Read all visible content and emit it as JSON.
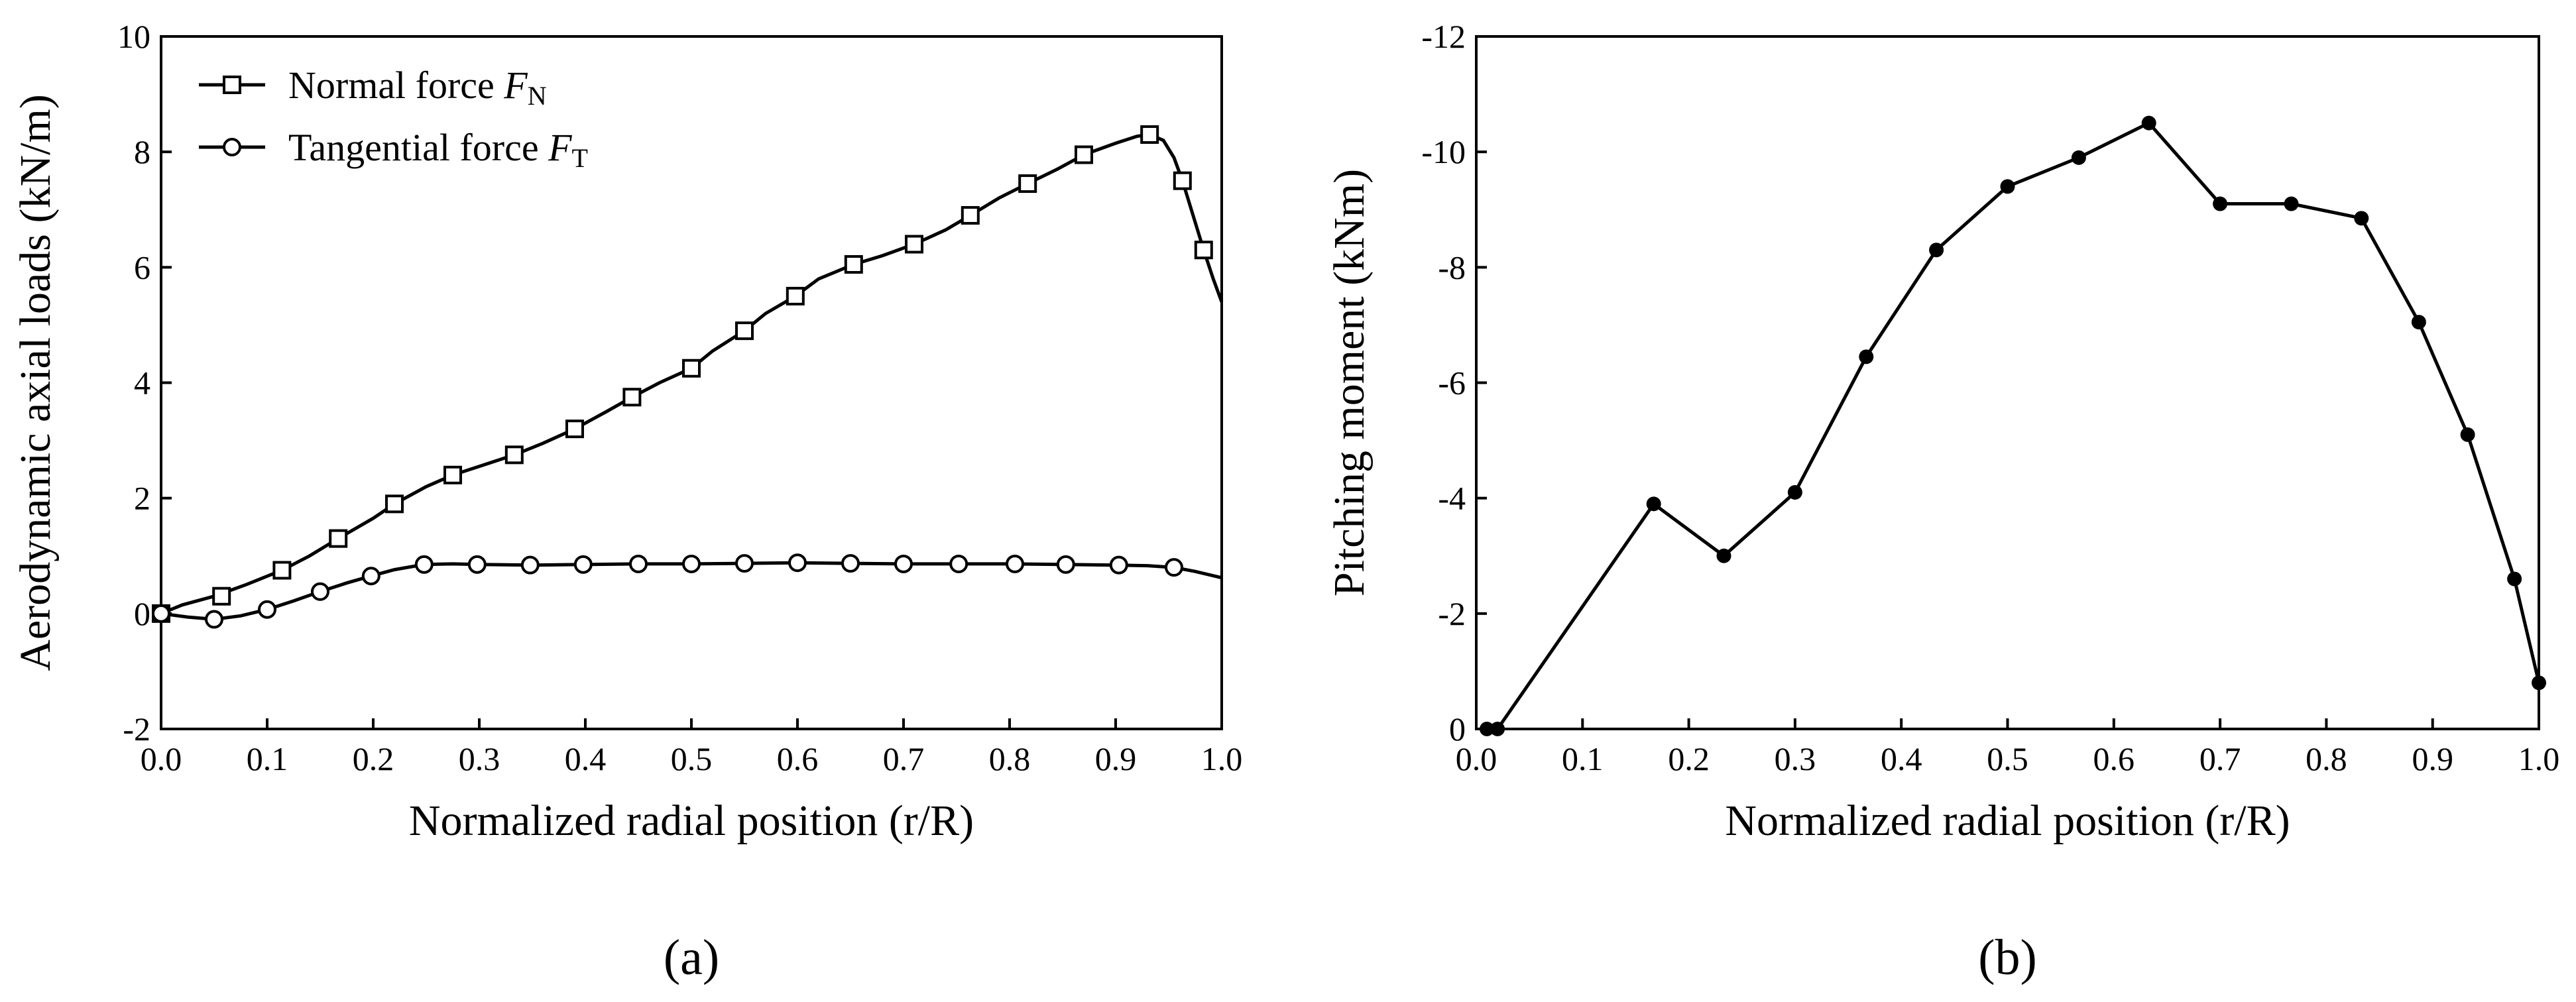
{
  "chart_data": [
    {
      "type": "line",
      "panel_label": "(a)",
      "xlabel": "Normalized radial position (r/R)",
      "ylabel": "Aerodynamic axial loads (kN/m)",
      "xlim": [
        0.0,
        1.0
      ],
      "ylim": [
        -2,
        10
      ],
      "xticks": [
        "0.0",
        "0.1",
        "0.2",
        "0.3",
        "0.4",
        "0.5",
        "0.6",
        "0.7",
        "0.8",
        "0.9",
        "1.0"
      ],
      "yticks": [
        "-2",
        "0",
        "2",
        "4",
        "6",
        "8",
        "10"
      ],
      "legend_position": "top-left",
      "series": [
        {
          "name": "Normal force",
          "symbol": "F",
          "subscript": "N",
          "marker": "square",
          "x": [
            0.0,
            0.057,
            0.114,
            0.167,
            0.22,
            0.275,
            0.333,
            0.39,
            0.444,
            0.5,
            0.55,
            0.598,
            0.653,
            0.71,
            0.763,
            0.817,
            0.87,
            0.932,
            0.963,
            0.983
          ],
          "values": [
            0.0,
            0.3,
            0.75,
            1.3,
            1.9,
            2.4,
            2.75,
            3.2,
            3.75,
            4.25,
            4.9,
            5.5,
            6.05,
            6.4,
            6.9,
            7.45,
            7.95,
            8.3,
            7.5,
            6.3
          ],
          "curve_x": [
            0.0,
            0.02,
            0.05,
            0.08,
            0.114,
            0.14,
            0.167,
            0.2,
            0.22,
            0.25,
            0.275,
            0.3,
            0.333,
            0.36,
            0.39,
            0.42,
            0.444,
            0.47,
            0.5,
            0.52,
            0.55,
            0.57,
            0.598,
            0.62,
            0.653,
            0.68,
            0.71,
            0.74,
            0.763,
            0.79,
            0.817,
            0.845,
            0.87,
            0.9,
            0.92,
            0.932,
            0.945,
            0.955,
            0.963,
            0.973,
            0.983,
            0.992,
            1.0
          ],
          "curve_y": [
            0.0,
            0.15,
            0.3,
            0.5,
            0.75,
            1.0,
            1.3,
            1.65,
            1.9,
            2.2,
            2.4,
            2.55,
            2.75,
            2.95,
            3.2,
            3.5,
            3.75,
            4.0,
            4.25,
            4.55,
            4.9,
            5.2,
            5.5,
            5.8,
            6.05,
            6.2,
            6.4,
            6.65,
            6.9,
            7.2,
            7.45,
            7.7,
            7.95,
            8.15,
            8.27,
            8.3,
            8.2,
            7.9,
            7.5,
            6.9,
            6.3,
            5.8,
            5.4
          ]
        },
        {
          "name": "Tangential force",
          "symbol": "F",
          "subscript": "T",
          "marker": "circle",
          "x": [
            0.0,
            0.05,
            0.1,
            0.15,
            0.198,
            0.248,
            0.298,
            0.348,
            0.398,
            0.45,
            0.5,
            0.55,
            0.6,
            0.65,
            0.7,
            0.752,
            0.805,
            0.853,
            0.903,
            0.955
          ],
          "values": [
            0.0,
            -0.1,
            0.07,
            0.38,
            0.65,
            0.85,
            0.85,
            0.84,
            0.85,
            0.86,
            0.86,
            0.87,
            0.88,
            0.87,
            0.86,
            0.86,
            0.86,
            0.85,
            0.84,
            0.8
          ],
          "curve_x": [
            0.0,
            0.025,
            0.05,
            0.075,
            0.1,
            0.125,
            0.15,
            0.175,
            0.198,
            0.22,
            0.248,
            0.275,
            0.298,
            0.35,
            0.4,
            0.45,
            0.5,
            0.55,
            0.6,
            0.65,
            0.7,
            0.75,
            0.8,
            0.85,
            0.9,
            0.93,
            0.955,
            0.975,
            1.0
          ],
          "curve_y": [
            0.0,
            -0.06,
            -0.1,
            -0.04,
            0.07,
            0.22,
            0.38,
            0.53,
            0.65,
            0.76,
            0.85,
            0.86,
            0.85,
            0.84,
            0.85,
            0.86,
            0.86,
            0.87,
            0.88,
            0.87,
            0.86,
            0.86,
            0.86,
            0.85,
            0.84,
            0.83,
            0.8,
            0.73,
            0.62
          ]
        }
      ]
    },
    {
      "type": "line",
      "panel_label": "(b)",
      "xlabel": "Normalized radial position (r/R)",
      "ylabel": "Pitching moment (kNm)",
      "xlim": [
        0.0,
        1.0
      ],
      "ylim": [
        0,
        -12
      ],
      "xticks": [
        "0.0",
        "0.1",
        "0.2",
        "0.3",
        "0.4",
        "0.5",
        "0.6",
        "0.7",
        "0.8",
        "0.9",
        "1.0"
      ],
      "yticks": [
        "0",
        "-2",
        "-4",
        "-6",
        "-8",
        "-10",
        "-12"
      ],
      "series": [
        {
          "name": "Pitching moment",
          "marker": "filled-circle",
          "x": [
            0.01,
            0.02,
            0.167,
            0.233,
            0.3,
            0.367,
            0.433,
            0.5,
            0.567,
            0.633,
            0.7,
            0.767,
            0.833,
            0.887,
            0.933,
            0.977,
            1.0
          ],
          "values": [
            0.0,
            0.0,
            -3.9,
            -3.0,
            -4.1,
            -6.45,
            -8.3,
            -9.4,
            -9.9,
            -10.5,
            -9.1,
            -9.1,
            -8.85,
            -7.05,
            -5.1,
            -2.6,
            -0.8
          ]
        }
      ]
    }
  ]
}
